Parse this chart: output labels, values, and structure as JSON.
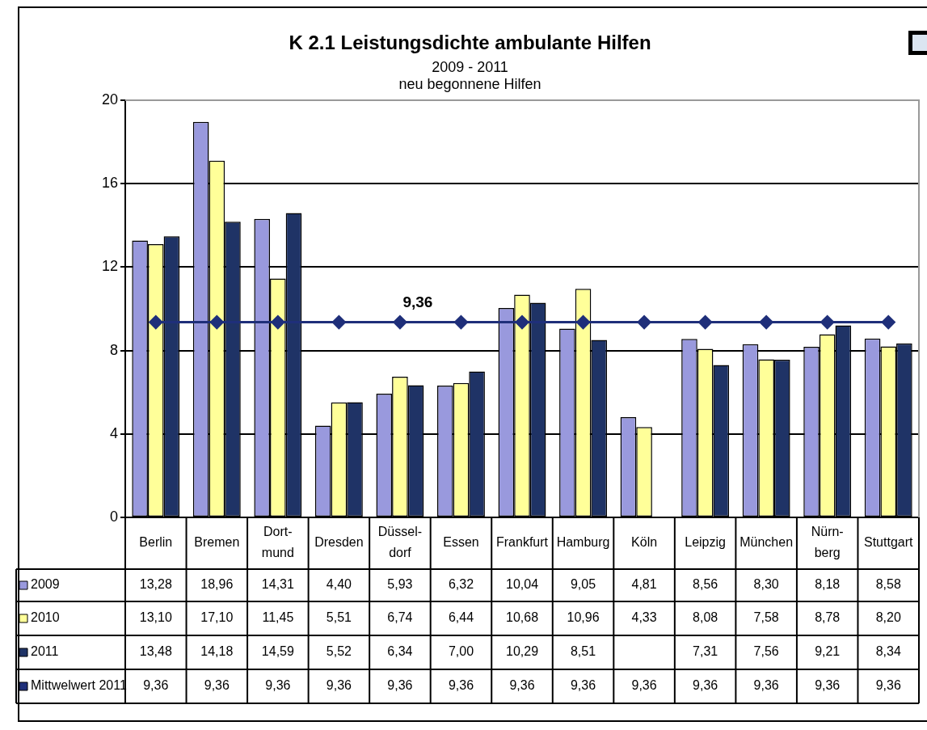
{
  "chart_data": {
    "type": "bar",
    "title": "K 2.1 Leistungsdichte ambulante Hilfen",
    "subtitle": "2009 - 2011\nneu begonnene Hilfen",
    "categories": [
      "Berlin",
      "Bremen",
      "Dort-mund",
      "Dresden",
      "Düssel-dorf",
      "Essen",
      "Frankfurt",
      "Hamburg",
      "Köln",
      "Leipzig",
      "München",
      "Nürn-berg",
      "Stuttgart"
    ],
    "series": [
      {
        "name": "2009",
        "color": "#9999dd",
        "values": [
          13.28,
          18.96,
          14.31,
          4.4,
          5.93,
          6.32,
          10.04,
          9.05,
          4.81,
          8.56,
          8.3,
          8.18,
          8.58
        ],
        "value_labels": [
          "13,28",
          "18,96",
          "14,31",
          "4,40",
          "5,93",
          "6,32",
          "10,04",
          "9,05",
          "4,81",
          "8,56",
          "8,30",
          "8,18",
          "8,58"
        ]
      },
      {
        "name": "2010",
        "color": "#ffff99",
        "values": [
          13.1,
          17.1,
          11.45,
          5.51,
          6.74,
          6.44,
          10.68,
          10.96,
          4.33,
          8.08,
          7.58,
          8.78,
          8.2
        ],
        "value_labels": [
          "13,10",
          "17,10",
          "11,45",
          "5,51",
          "6,74",
          "6,44",
          "10,68",
          "10,96",
          "4,33",
          "8,08",
          "7,58",
          "8,78",
          "8,20"
        ]
      },
      {
        "name": "2011",
        "color": "#1f3366",
        "values": [
          13.48,
          14.18,
          14.59,
          5.52,
          6.34,
          7.0,
          10.29,
          8.51,
          null,
          7.31,
          7.56,
          9.21,
          8.34
        ],
        "value_labels": [
          "13,48",
          "14,18",
          "14,59",
          "5,52",
          "6,34",
          "7,00",
          "10,29",
          "8,51",
          null,
          "7,31",
          "7,56",
          "9,21",
          "8,34"
        ]
      },
      {
        "name": "Mittwelwert 2011",
        "type": "line",
        "color": "#1f2f7a",
        "marker": "diamond",
        "values": [
          9.36,
          9.36,
          9.36,
          9.36,
          9.36,
          9.36,
          9.36,
          9.36,
          9.36,
          9.36,
          9.36,
          9.36,
          9.36
        ],
        "value_labels": [
          "9,36",
          "9,36",
          "9,36",
          "9,36",
          "9,36",
          "9,36",
          "9,36",
          "9,36",
          "9,36",
          "9,36",
          "9,36",
          "9,36",
          "9,36"
        ]
      }
    ],
    "ylim": [
      0,
      20
    ],
    "yticks": [
      0,
      4,
      8,
      12,
      16,
      20
    ],
    "grid": "y",
    "legend": "bottom left",
    "annotations": [
      "9,36"
    ]
  }
}
